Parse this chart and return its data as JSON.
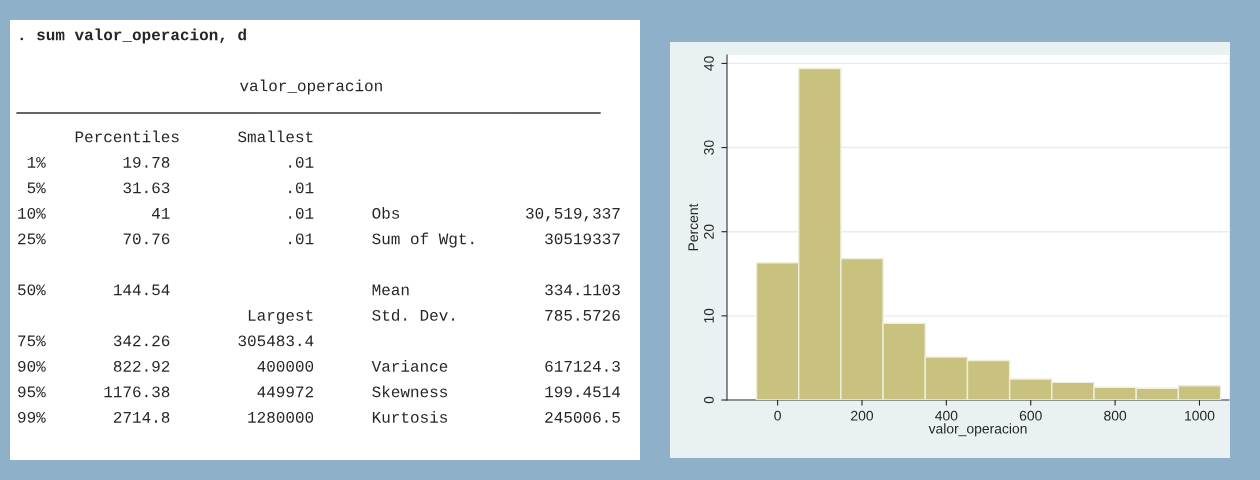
{
  "chart_data": [
    {
      "type": "other",
      "title": ". sum valor_operacion, d",
      "subtitle": "valor_operacion",
      "annotations": [
        "      Percentiles      Smallest",
        " 1%        19.78            .01",
        " 5%        31.63            .01",
        "10%           41            .01      Obs             30,519,337",
        "25%        70.76            .01      Sum of Wgt.       30519337",
        "50%       144.54                     Mean              334.1103",
        "                        Largest      Std. Dev.         785.5726",
        "75%       342.26       305483.4",
        "90%       822.92         400000      Variance          617124.3",
        "95%      1176.38         449972      Skewness          199.4514",
        "99%       2714.8        1280000      Kurtosis          245006.5"
      ]
    },
    {
      "type": "histogram",
      "xlabel": "valor_operacion",
      "ylabel": "Percent",
      "color": "#c9c27e",
      "bins": [
        -50,
        50,
        150,
        250,
        350,
        450,
        550,
        650,
        750,
        850,
        950,
        1050
      ],
      "values": [
        16.3,
        39.4,
        16.8,
        9.1,
        5.1,
        4.7,
        2.5,
        2.1,
        1.5,
        1.4,
        1.7
      ],
      "xlim": [
        -120,
        1070
      ],
      "ylim": [
        0,
        41
      ],
      "xticks": [
        0,
        200,
        400,
        600,
        800,
        1000
      ],
      "yticks": [
        0,
        10,
        20,
        30,
        40
      ],
      "grid": "y"
    }
  ]
}
